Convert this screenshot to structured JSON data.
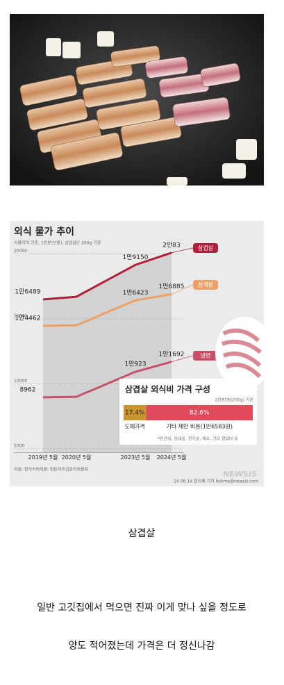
{
  "post": {
    "caption": "삼겹살",
    "lines": [
      "일반 고깃집에서 먹으면 진짜 이게 맞나 싶을 정도로",
      "양도 적어졌는데 가격은 더 정신나감"
    ]
  },
  "infographic": {
    "source": "자료: 한국소비자원, 한돈자조금관리위원회",
    "credit": "24.06.14 안지혜 기자 hokma@newsis.com",
    "watermark": "NEWSIS"
  },
  "chart_data": [
    {
      "type": "line",
      "title": "외식 물가 추이",
      "subtitle": "서울지역 기준, 1인분(보통), 삼겹살은 200g 기준",
      "categories": [
        "2019년 5월",
        "2020년 5월",
        "2023년 5월",
        "2024년 5월"
      ],
      "ylim": [
        4700,
        20500
      ],
      "yticks": [
        5000,
        10000,
        15000,
        20000
      ],
      "grid": true,
      "series": [
        {
          "name": "삼겹살",
          "color": "#b0203a",
          "values": [
            16489,
            16700,
            19150,
            20083
          ],
          "value_labels": [
            "1만6489",
            null,
            "1만9150",
            "2만83"
          ]
        },
        {
          "name": "삼계탕",
          "color": "#eda064",
          "values": [
            14462,
            14500,
            16423,
            16885
          ],
          "value_labels": [
            "1만4462",
            null,
            "1만6423",
            "1만6885"
          ]
        },
        {
          "name": "냉면",
          "color": "#c65068",
          "values": [
            8962,
            9000,
            10923,
            11692
          ],
          "value_labels": [
            "8962",
            null,
            "1만923",
            "1만1692"
          ]
        }
      ]
    },
    {
      "type": "bar",
      "orientation": "horizontal",
      "stacked": true,
      "title": "삼겹살 외식비 가격 구성",
      "subtitle": "2만83원(200g) 기준",
      "xlim": [
        0,
        100
      ],
      "note": "*인건비, 임대료, 전기료, 채소, 기타 양념비 등",
      "series": [
        {
          "name": "도매가격",
          "color": "#c89530",
          "values": [
            17.4
          ],
          "value_labels": [
            "17.4%"
          ]
        },
        {
          "name": "기타 제반 비용(1만6583원)",
          "color": "#e04a5c",
          "values": [
            82.6
          ],
          "value_labels": [
            "82.6%"
          ]
        }
      ]
    }
  ]
}
